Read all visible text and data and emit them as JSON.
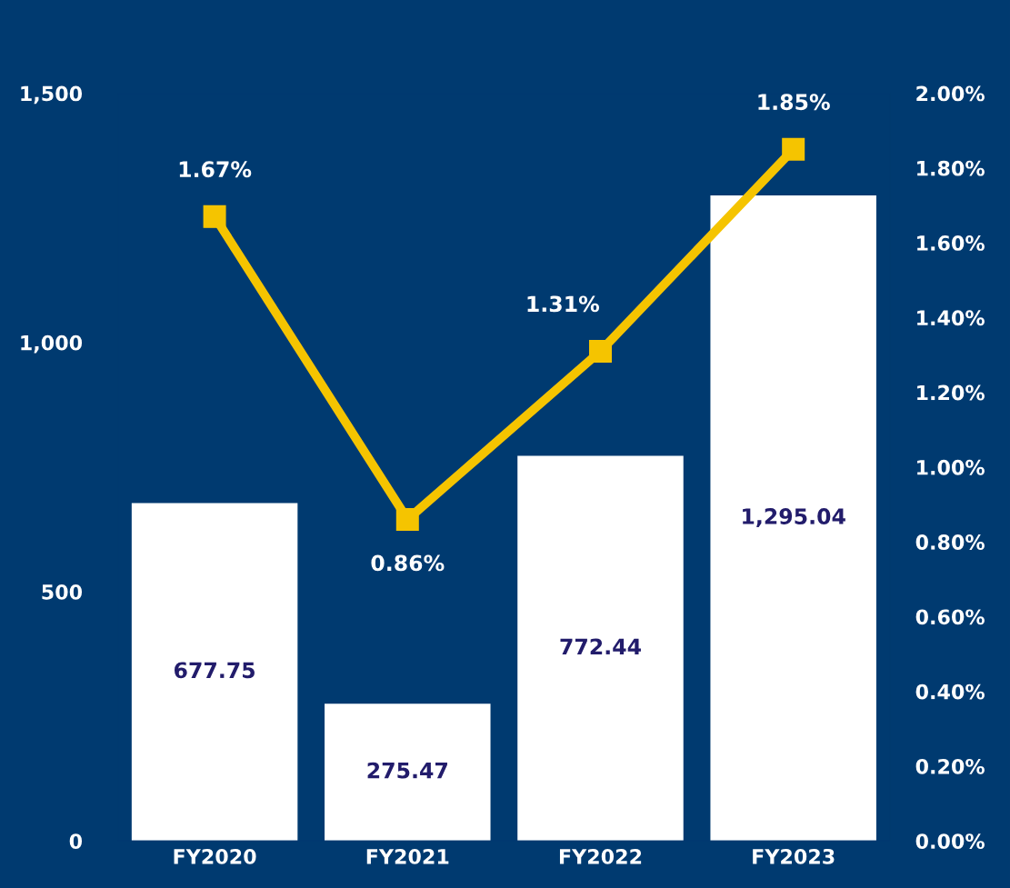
{
  "chart_data": {
    "type": "bar",
    "categories": [
      "FY2020",
      "FY2021",
      "FY2022",
      "FY2023"
    ],
    "series": [
      {
        "color": "#ffffff",
        "values": [
          677.75,
          275.47,
          772.44,
          1295.04
        ],
        "value_labels": [
          "677.75",
          "275.47",
          "772.44",
          "1,295.04"
        ]
      },
      {
        "type": "line",
        "axis": "y2",
        "color": "#f5c400",
        "values": [
          1.67,
          0.86,
          1.31,
          1.85
        ],
        "value_labels": [
          "1.67%",
          "0.86%",
          "1.31%",
          "1.85%"
        ]
      }
    ],
    "ylim": [
      0,
      1500
    ],
    "yticks": [
      0,
      500,
      {
        "value": 1000,
        "label": "1,000"
      },
      {
        "value": 1500,
        "label": "1,500"
      }
    ],
    "y2lim": [
      0,
      2
    ],
    "y2ticks": [
      {
        "value": 0,
        "label": "0.00%"
      },
      {
        "value": 0.2,
        "label": "0.20%"
      },
      {
        "value": 0.4,
        "label": "0.40%"
      },
      {
        "value": 0.6,
        "label": "0.60%"
      },
      {
        "value": 0.8,
        "label": "0.80%"
      },
      {
        "value": 1.0,
        "label": "1.00%"
      },
      {
        "value": 1.2,
        "label": "1.20%"
      },
      {
        "value": 1.4,
        "label": "1.40%"
      },
      {
        "value": 1.6,
        "label": "1.60%"
      },
      {
        "value": 1.8,
        "label": "1.80%"
      },
      {
        "value": 2.0,
        "label": "2.00%"
      }
    ],
    "marker": "square",
    "line_style": "solid",
    "grid": false,
    "legend": false
  }
}
